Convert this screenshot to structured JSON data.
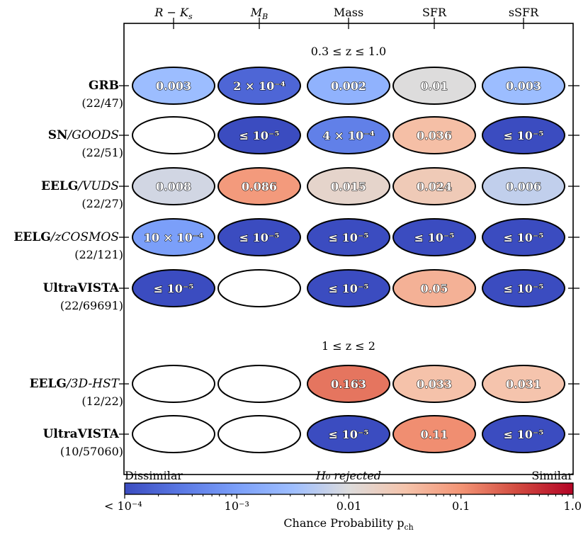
{
  "chart_data": {
    "type": "heatmap",
    "columns": [
      "R − K",
      "M",
      "Mass",
      "SFR",
      "sSFR"
    ],
    "sections": [
      {
        "title": "0.3 ≤ z ≤ 1.0",
        "rows": [
          {
            "name": "GRB",
            "name_suffix": "",
            "count": "(22/47)",
            "cells": [
              {
                "label": "0.003",
                "p": 0.003
              },
              {
                "label": "2 × 10⁻⁴",
                "p": 0.0002
              },
              {
                "label": "0.002",
                "p": 0.002
              },
              {
                "label": "0.01",
                "p": 0.01
              },
              {
                "label": "0.003",
                "p": 0.003
              }
            ]
          },
          {
            "name": "SN",
            "name_suffix": "/GOODS",
            "count": "(22/51)",
            "cells": [
              null,
              {
                "label": "≤ 10⁻⁵",
                "p": 1e-05
              },
              {
                "label": "4 × 10⁻⁴",
                "p": 0.0004
              },
              {
                "label": "0.036",
                "p": 0.036
              },
              {
                "label": "≤ 10⁻⁵",
                "p": 1e-05
              }
            ]
          },
          {
            "name": "EELG",
            "name_suffix": "/VUDS",
            "count": "(22/27)",
            "cells": [
              {
                "label": "0.008",
                "p": 0.008
              },
              {
                "label": "0.086",
                "p": 0.086
              },
              {
                "label": "0.015",
                "p": 0.015
              },
              {
                "label": "0.024",
                "p": 0.024
              },
              {
                "label": "0.006",
                "p": 0.006
              }
            ]
          },
          {
            "name": "EELG",
            "name_suffix": "/zCOSMOS",
            "count": "(22/121)",
            "cells": [
              {
                "label": "10 × 10⁻⁴",
                "p": 0.001
              },
              {
                "label": "≤ 10⁻⁵",
                "p": 1e-05
              },
              {
                "label": "≤ 10⁻⁵",
                "p": 1e-05
              },
              {
                "label": "≤ 10⁻⁵",
                "p": 1e-05
              },
              {
                "label": "≤ 10⁻⁵",
                "p": 1e-05
              }
            ]
          },
          {
            "name": "UltraVISTA",
            "name_suffix": "",
            "count": "(22/69691)",
            "cells": [
              {
                "label": "≤ 10⁻⁵",
                "p": 1e-05
              },
              null,
              {
                "label": "≤ 10⁻⁵",
                "p": 1e-05
              },
              {
                "label": "0.05",
                "p": 0.05
              },
              {
                "label": "≤ 10⁻⁵",
                "p": 1e-05
              }
            ]
          }
        ]
      },
      {
        "title": "1 ≤ z ≤ 2",
        "rows": [
          {
            "name": "EELG",
            "name_suffix": "/3D-HST",
            "count": "(12/22)",
            "cells": [
              null,
              null,
              {
                "label": "0.163",
                "p": 0.163
              },
              {
                "label": "0.033",
                "p": 0.033
              },
              {
                "label": "0.031",
                "p": 0.031
              }
            ]
          },
          {
            "name": "UltraVISTA",
            "name_suffix": "",
            "count": "(10/57060)",
            "cells": [
              null,
              null,
              {
                "label": "≤ 10⁻⁵",
                "p": 1e-05
              },
              {
                "label": "0.11",
                "p": 0.11
              },
              {
                "label": "≤ 10⁻⁵",
                "p": 1e-05
              }
            ]
          }
        ]
      }
    ],
    "colorbar": {
      "label": "Chance Probability p",
      "label_sub": "ch",
      "range": [
        0.0001,
        1.0
      ],
      "scale": "log",
      "ticks": [
        {
          "value": 0.0001,
          "label": "< 10⁻⁴"
        },
        {
          "value": 0.001,
          "label": "10⁻³"
        },
        {
          "value": 0.01,
          "label": "0.01"
        },
        {
          "value": 0.1,
          "label": "0.1"
        },
        {
          "value": 1.0,
          "label": "1.0"
        }
      ],
      "left_text": "Dissimilar",
      "center_text": "H₀ rejected",
      "right_text": "Similar",
      "colormap": "coolwarm"
    }
  }
}
